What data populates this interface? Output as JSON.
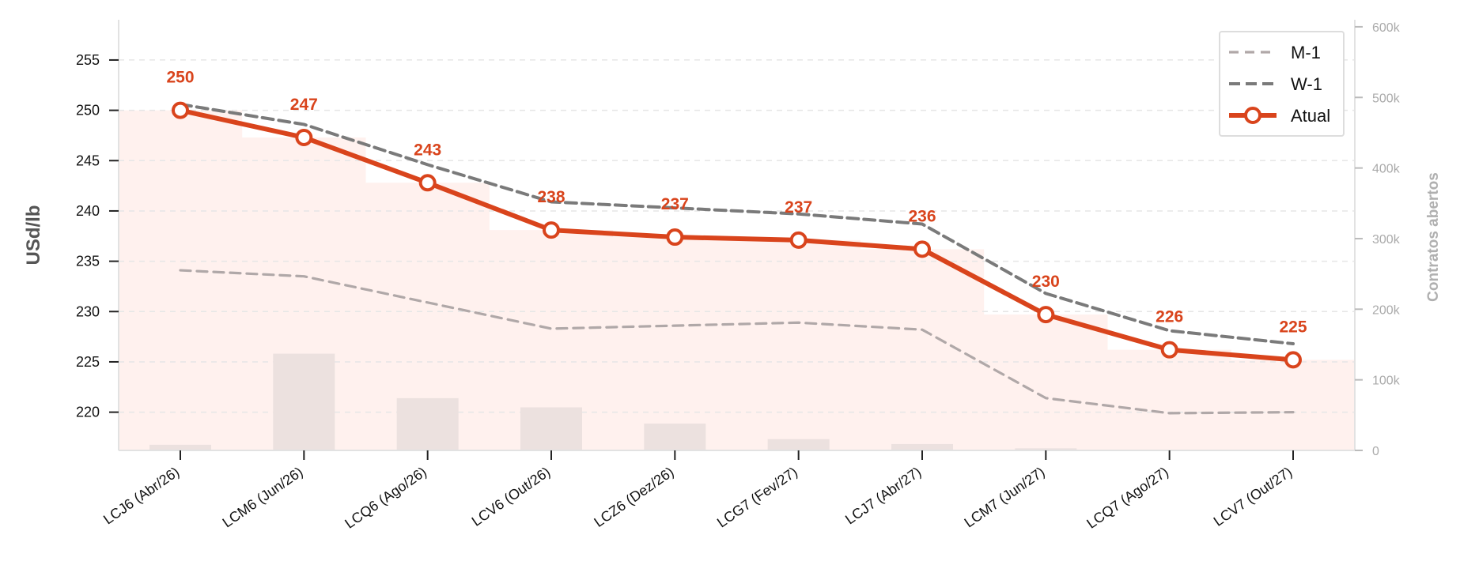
{
  "chart_data": {
    "type": "line",
    "categories": [
      "LCJ6 (Abr/26)",
      "LCM6 (Jun/26)",
      "LCQ6 (Ago/26)",
      "LCV6 (Out/26)",
      "LCZ6 (Dez/26)",
      "LCG7 (Fev/27)",
      "LCJ7 (Abr/27)",
      "LCM7 (Jun/27)",
      "LCQ7 (Ago/27)",
      "LCV7 (Out/27)"
    ],
    "ylabel": "USd/lb",
    "y2label": "Contratos abertos",
    "ylim": [
      216.2,
      259
    ],
    "yticks": [
      220,
      225,
      230,
      235,
      240,
      245,
      250,
      255
    ],
    "y2lim": [
      0,
      610000
    ],
    "y2ticks": [
      0,
      100000,
      200000,
      300000,
      400000,
      500000,
      600000
    ],
    "y2ticklabels": [
      "0",
      "100k",
      "200k",
      "300k",
      "400k",
      "500k",
      "600k"
    ],
    "series": [
      {
        "name": "M-1",
        "style": "dashed",
        "color": "#b0a8a8",
        "values": [
          234.1,
          233.5,
          230.9,
          228.3,
          228.6,
          228.9,
          228.2,
          221.4,
          219.9,
          220.0
        ]
      },
      {
        "name": "W-1",
        "style": "dashed",
        "color": "#7a7a7a",
        "values": [
          250.6,
          248.6,
          244.6,
          240.9,
          240.3,
          239.7,
          238.7,
          231.8,
          228.1,
          226.8
        ]
      },
      {
        "name": "Atual",
        "style": "solid-marker",
        "color": "#d9441c",
        "values": [
          250.0,
          247.3,
          242.8,
          238.1,
          237.4,
          237.1,
          236.2,
          229.7,
          226.2,
          225.2
        ]
      }
    ],
    "data_labels": [
      "250",
      "247",
      "243",
      "238",
      "237",
      "237",
      "236",
      "230",
      "226",
      "225"
    ],
    "open_interest": {
      "name": "Contratos abertos",
      "color": "#ece1df",
      "values": [
        8000,
        137000,
        74000,
        61000,
        38000,
        16000,
        9000,
        3000,
        0,
        0
      ]
    },
    "shaded_area": {
      "color": "#fff1ee",
      "series": "Atual"
    },
    "grid": true,
    "legend_position": "top-right"
  }
}
